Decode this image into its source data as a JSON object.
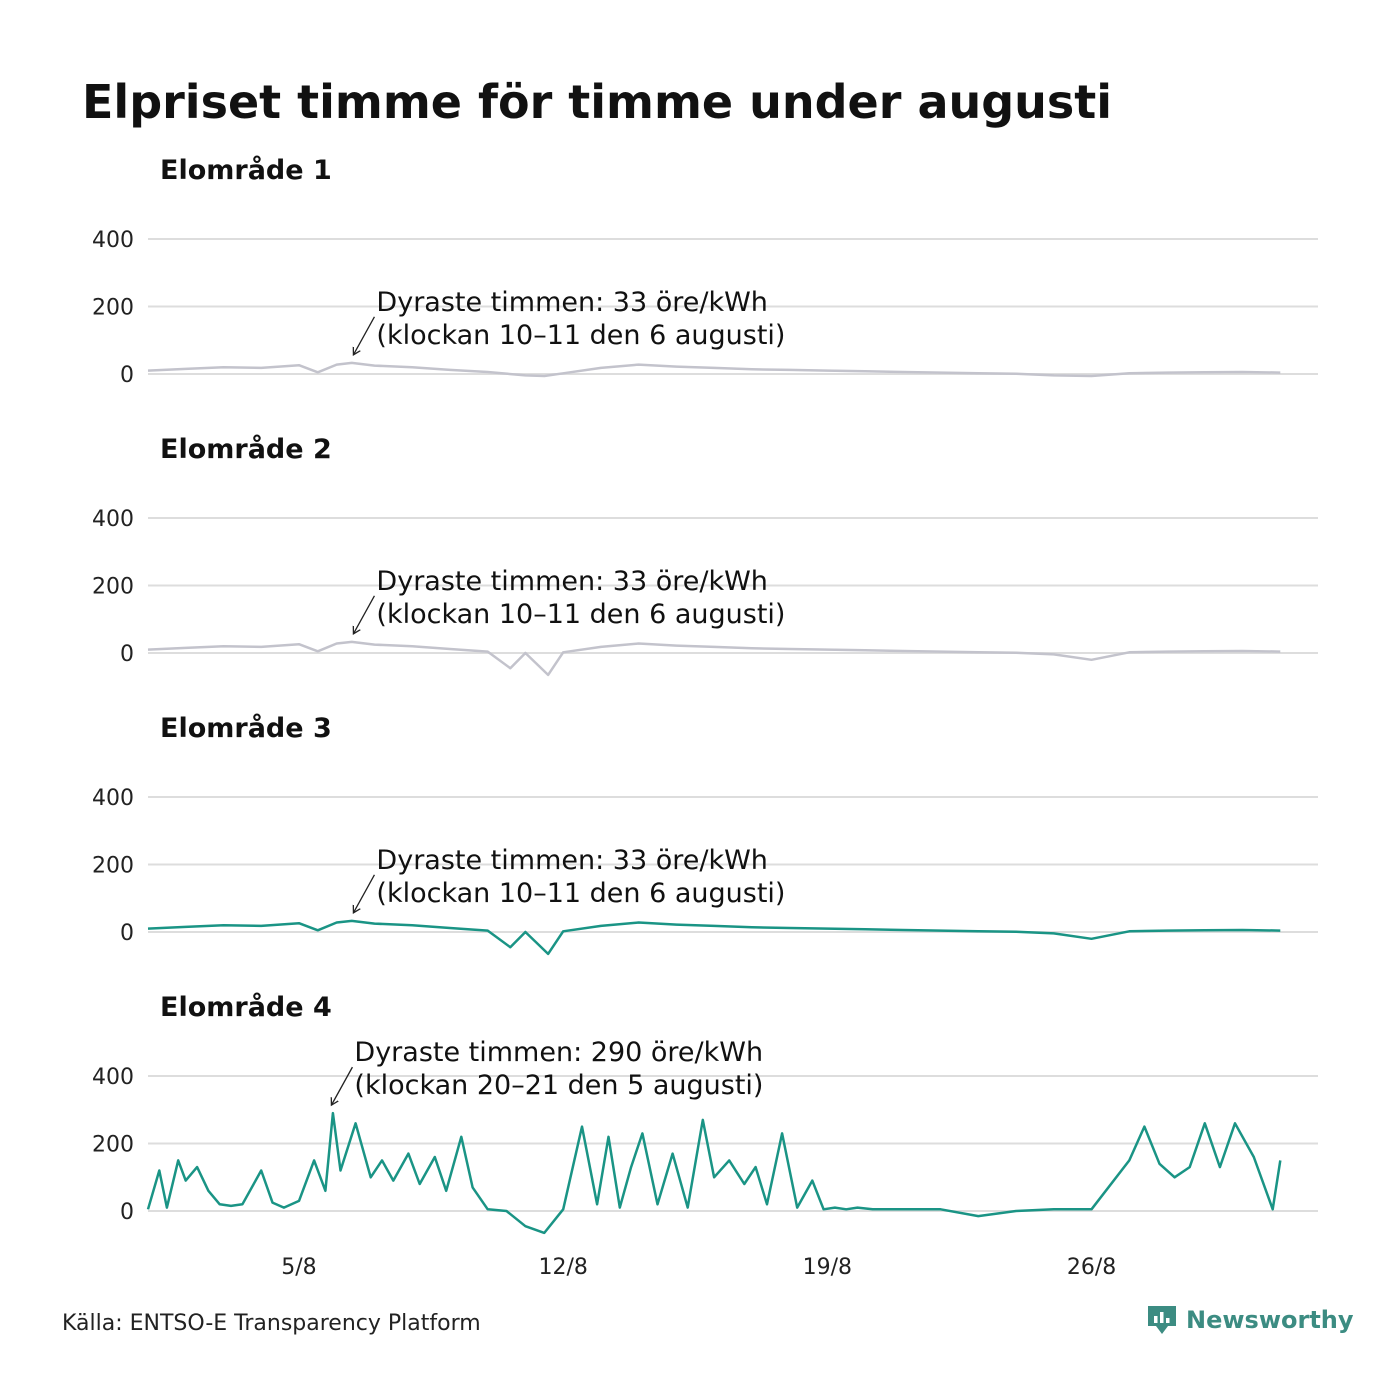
{
  "title": "Elpriset timme för timme under augusti",
  "source": "Källa: ENTSO-E Transparency Platform",
  "brand": {
    "name": "Newsworthy",
    "color": "#3c8c82"
  },
  "colors": {
    "highlight": "#1a9485",
    "muted": "#c3c3cc",
    "grid": "#dddddd"
  },
  "chart_data": [
    {
      "type": "line",
      "title": "Elområde 1",
      "ylim": [
        -80,
        500
      ],
      "yticks": [
        0,
        200,
        400
      ],
      "xticks": [
        "5/8",
        "12/8",
        "19/8",
        "26/8"
      ],
      "grid": true,
      "color": "muted",
      "annotation": {
        "line1": "Dyraste timmen: 33 öre/kWh",
        "line2": "(klockan 10–11 den 6 augusti)",
        "day": 6,
        "hour": 10,
        "value": 33
      },
      "series": [
        {
          "x": [
            1,
            2,
            3,
            4,
            5,
            5.5,
            6,
            6.4,
            7,
            8,
            9,
            10,
            11,
            11.5,
            12,
            13,
            14,
            15,
            16,
            17,
            18,
            19,
            20,
            21,
            22,
            23,
            24,
            25,
            26,
            27,
            28,
            29,
            30,
            31
          ],
          "y": [
            10,
            15,
            20,
            18,
            26,
            5,
            28,
            33,
            25,
            20,
            12,
            6,
            -4,
            -6,
            2,
            18,
            28,
            22,
            18,
            14,
            12,
            10,
            8,
            6,
            4,
            2,
            1,
            -4,
            -6,
            2,
            4,
            5,
            6,
            4
          ]
        }
      ]
    },
    {
      "type": "line",
      "title": "Elområde 2",
      "ylim": [
        -80,
        500
      ],
      "yticks": [
        0,
        200,
        400
      ],
      "xticks": [
        "5/8",
        "12/8",
        "19/8",
        "26/8"
      ],
      "grid": true,
      "color": "muted",
      "annotation": {
        "line1": "Dyraste timmen: 33 öre/kWh",
        "line2": "(klockan 10–11 den 6 augusti)",
        "day": 6,
        "hour": 10,
        "value": 33
      },
      "series": [
        {
          "x": [
            1,
            2,
            3,
            4,
            5,
            5.5,
            6,
            6.4,
            7,
            8,
            9,
            10,
            10.6,
            11,
            11.6,
            12,
            13,
            14,
            15,
            16,
            17,
            18,
            19,
            20,
            21,
            22,
            23,
            24,
            25,
            26,
            27,
            28,
            29,
            30,
            31
          ],
          "y": [
            10,
            15,
            20,
            18,
            26,
            5,
            28,
            33,
            25,
            20,
            12,
            4,
            -45,
            0,
            -65,
            2,
            18,
            28,
            22,
            18,
            14,
            12,
            10,
            8,
            6,
            4,
            2,
            1,
            -4,
            -20,
            2,
            4,
            5,
            6,
            4
          ]
        }
      ]
    },
    {
      "type": "line",
      "title": "Elområde 3",
      "ylim": [
        -80,
        500
      ],
      "yticks": [
        0,
        200,
        400
      ],
      "xticks": [
        "5/8",
        "12/8",
        "19/8",
        "26/8"
      ],
      "grid": true,
      "color": "highlight",
      "annotation": {
        "line1": "Dyraste timmen: 33 öre/kWh",
        "line2": "(klockan 10–11 den 6 augusti)",
        "day": 6,
        "hour": 10,
        "value": 33
      },
      "series": [
        {
          "x": [
            1,
            2,
            3,
            4,
            5,
            5.5,
            6,
            6.4,
            7,
            8,
            9,
            10,
            10.6,
            11,
            11.6,
            12,
            13,
            14,
            15,
            16,
            17,
            18,
            19,
            20,
            21,
            22,
            23,
            24,
            25,
            26,
            27,
            28,
            29,
            30,
            31
          ],
          "y": [
            10,
            15,
            20,
            18,
            26,
            5,
            28,
            33,
            25,
            20,
            12,
            4,
            -45,
            0,
            -65,
            2,
            18,
            28,
            22,
            18,
            14,
            12,
            10,
            8,
            6,
            4,
            2,
            1,
            -4,
            -20,
            2,
            4,
            5,
            6,
            4
          ]
        }
      ]
    },
    {
      "type": "line",
      "title": "Elområde 4",
      "ylim": [
        -80,
        500
      ],
      "yticks": [
        0,
        200,
        400
      ],
      "xticks": [
        "5/8",
        "12/8",
        "19/8",
        "26/8"
      ],
      "grid": true,
      "color": "highlight",
      "annotation": {
        "line1": "Dyraste timmen: 290 öre/kWh",
        "line2": "(klockan 20–21 den 5 augusti)",
        "day": 5,
        "hour": 20,
        "value": 290
      },
      "series": [
        {
          "x": [
            1,
            1.3,
            1.5,
            1.8,
            2,
            2.3,
            2.6,
            2.9,
            3.2,
            3.5,
            4,
            4.3,
            4.6,
            5,
            5.4,
            5.7,
            5.9,
            6.1,
            6.5,
            6.9,
            7.2,
            7.5,
            7.9,
            8.2,
            8.6,
            8.9,
            9.3,
            9.6,
            10,
            10.5,
            11,
            11.5,
            12,
            12.5,
            12.9,
            13.2,
            13.5,
            13.8,
            14.1,
            14.5,
            14.9,
            15.3,
            15.7,
            16,
            16.4,
            16.8,
            17.1,
            17.4,
            17.8,
            18.2,
            18.6,
            18.9,
            19.2,
            19.5,
            19.8,
            20.2,
            20.6,
            21,
            21.6,
            22,
            23,
            24,
            25,
            26,
            27,
            27.4,
            27.8,
            28.2,
            28.6,
            29,
            29.4,
            29.8,
            30.3,
            30.8,
            31
          ],
          "y": [
            5,
            120,
            10,
            150,
            90,
            130,
            60,
            20,
            15,
            20,
            120,
            25,
            10,
            30,
            150,
            60,
            290,
            120,
            260,
            100,
            150,
            90,
            170,
            80,
            160,
            60,
            220,
            70,
            5,
            0,
            -45,
            -65,
            5,
            250,
            20,
            220,
            10,
            130,
            230,
            20,
            170,
            10,
            270,
            100,
            150,
            80,
            130,
            20,
            230,
            10,
            90,
            5,
            10,
            5,
            10,
            5,
            5,
            5,
            5,
            5,
            -15,
            0,
            5,
            5,
            150,
            250,
            140,
            100,
            130,
            260,
            130,
            260,
            160,
            5,
            150
          ]
        }
      ]
    }
  ]
}
